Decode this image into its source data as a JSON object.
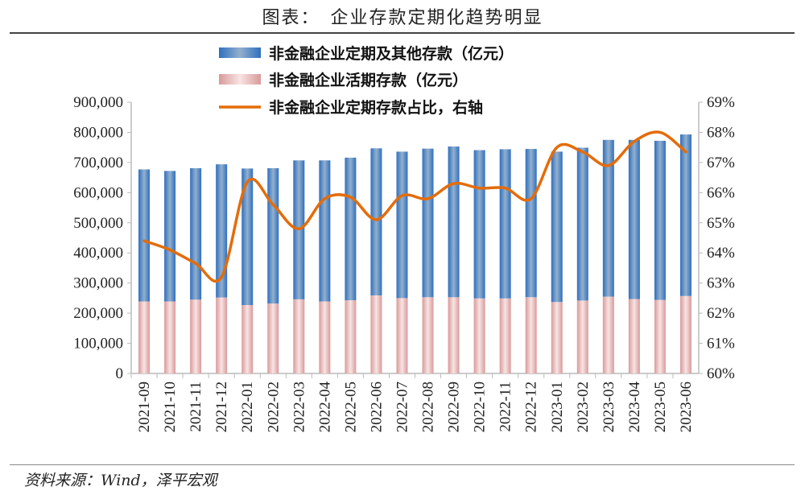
{
  "title": "图表：　企业存款定期化趋势明显",
  "source": "资料来源：Wind，泽平宏观",
  "chart_data": {
    "type": "bar",
    "stacked": true,
    "title": "图表：　企业存款定期化趋势明显",
    "categories": [
      "2021-09",
      "2021-10",
      "2021-11",
      "2021-12",
      "2022-01",
      "2022-02",
      "2022-03",
      "2022-04",
      "2022-05",
      "2022-06",
      "2022-07",
      "2022-08",
      "2022-09",
      "2022-10",
      "2022-11",
      "2022-12",
      "2023-01",
      "2023-02",
      "2023-03",
      "2023-04",
      "2023-05",
      "2023-06"
    ],
    "series": [
      {
        "name": "非金融企业定期及其他存款（亿元）",
        "type": "bar",
        "axis": "left",
        "color": "#3a78c2",
        "values": [
          438000,
          433000,
          436000,
          442000,
          453000,
          449000,
          461000,
          468000,
          473000,
          488000,
          486000,
          493000,
          500000,
          492000,
          495000,
          492000,
          499000,
          507000,
          520000,
          528000,
          528000,
          536000
        ]
      },
      {
        "name": "非金融企业活期存款（亿元）",
        "type": "bar",
        "axis": "left",
        "color": "#e8b4b4",
        "values": [
          239000,
          239000,
          245000,
          252000,
          227000,
          232000,
          246000,
          239000,
          243000,
          259000,
          250000,
          253000,
          253000,
          249000,
          249000,
          253000,
          237000,
          242000,
          255000,
          247000,
          244000,
          257000
        ]
      },
      {
        "name": "非金融企业定期存款占比，右轴",
        "type": "line",
        "axis": "right",
        "color": "#e46c0a",
        "values": [
          64.4,
          64.1,
          63.65,
          63.2,
          66.35,
          65.6,
          64.8,
          65.8,
          65.85,
          65.1,
          65.9,
          65.8,
          66.3,
          66.15,
          66.15,
          65.8,
          67.5,
          67.35,
          66.9,
          67.7,
          68.0,
          67.35
        ]
      }
    ],
    "y_left": {
      "min": 0,
      "max": 900000,
      "step": 100000,
      "tick_labels": [
        "0",
        "100,000",
        "200,000",
        "300,000",
        "400,000",
        "500,000",
        "600,000",
        "700,000",
        "800,000",
        "900,000"
      ]
    },
    "y_right": {
      "min": 60,
      "max": 69,
      "step": 1,
      "tick_labels": [
        "60%",
        "61%",
        "62%",
        "63%",
        "64%",
        "65%",
        "66%",
        "67%",
        "68%",
        "69%"
      ]
    },
    "legend_position": "top-center",
    "grid": false
  }
}
